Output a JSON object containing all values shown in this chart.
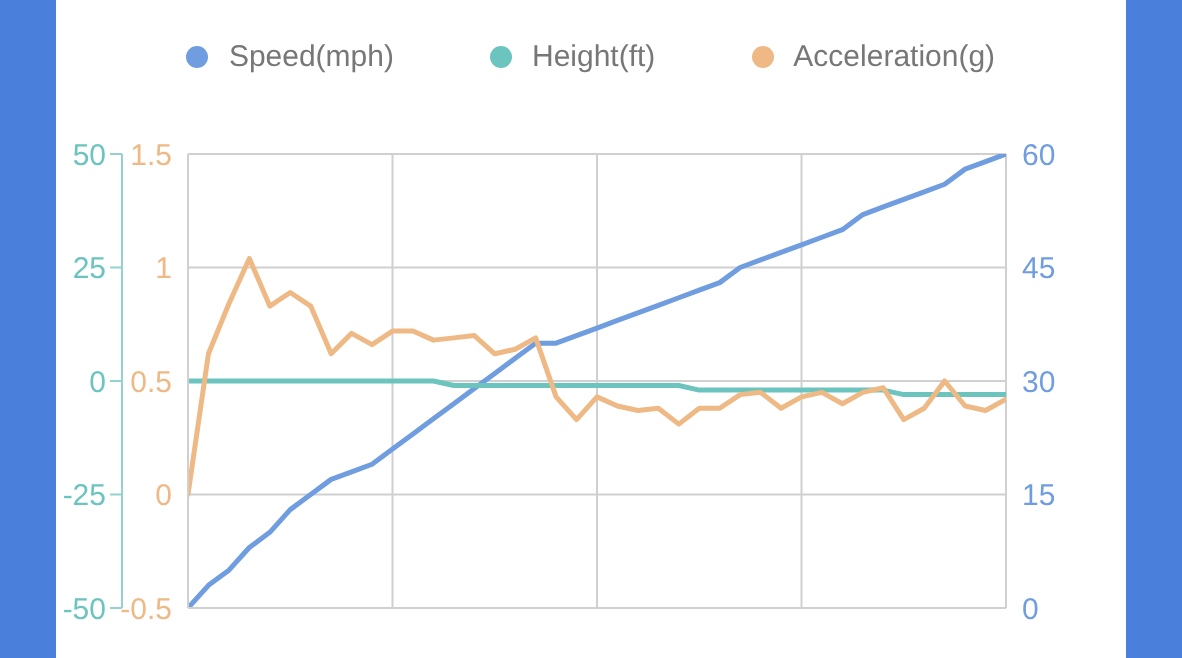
{
  "chart_data": {
    "type": "line",
    "categories": [
      null,
      null,
      null,
      null,
      null,
      null,
      null,
      null,
      null,
      null,
      null,
      null,
      null,
      null,
      null,
      null,
      null,
      null,
      null,
      null,
      null,
      null,
      null,
      null,
      null,
      null,
      null,
      null,
      null,
      null,
      null,
      null,
      null,
      null,
      null,
      null,
      null,
      null,
      null,
      null,
      null
    ],
    "ylim": [
      -50,
      50
    ],
    "yticks": [
      -50,
      -25,
      0,
      25,
      50
    ],
    "y3lim": [
      -0.5,
      1.5
    ],
    "y3ticks": [
      -0.5,
      0,
      0.5,
      1,
      1.5
    ],
    "y2lim": [
      0,
      60
    ],
    "y2ticks": [
      0,
      15,
      30,
      45,
      60
    ],
    "tick_labels": "y",
    "grid": true,
    "legend": "top",
    "marker": "none",
    "line_style": "solid",
    "series": [
      {
        "name": "Speed(mph)",
        "color": "#6f9de0",
        "axis": "y2",
        "values": [
          0,
          3,
          5,
          8,
          10,
          13,
          15,
          17,
          18,
          19,
          21,
          23,
          25,
          27,
          29,
          31,
          33,
          35,
          35,
          36,
          37,
          38,
          39,
          40,
          41,
          42,
          43,
          45,
          46,
          47,
          48,
          49,
          50,
          52,
          53,
          54,
          55,
          56,
          58,
          59,
          60
        ]
      },
      {
        "name": "Height(ft)",
        "color": "#6cc4bf",
        "axis": "y",
        "values": [
          0,
          0,
          0,
          0,
          0,
          0,
          0,
          0,
          0,
          0,
          0,
          0,
          0,
          -1,
          -1,
          -1,
          -1,
          -1,
          -1,
          -1,
          -1,
          -1,
          -1,
          -1,
          -1,
          -2,
          -2,
          -2,
          -2,
          -2,
          -2,
          -2,
          -2,
          -2,
          -2,
          -3,
          -3,
          -3,
          -3,
          -3,
          -3
        ]
      },
      {
        "name": "Acceleration(g)",
        "color": "#eeb984",
        "axis": "y3",
        "values": [
          0,
          0.62,
          0.84,
          1.04,
          0.83,
          0.89,
          0.83,
          0.62,
          0.71,
          0.66,
          0.72,
          0.72,
          0.68,
          0.69,
          0.7,
          0.62,
          0.64,
          0.69,
          0.43,
          0.33,
          0.43,
          0.39,
          0.37,
          0.38,
          0.31,
          0.38,
          0.38,
          0.44,
          0.45,
          0.38,
          0.43,
          0.45,
          0.4,
          0.45,
          0.47,
          0.33,
          0.38,
          0.5,
          0.39,
          0.37,
          0.42
        ]
      }
    ]
  }
}
